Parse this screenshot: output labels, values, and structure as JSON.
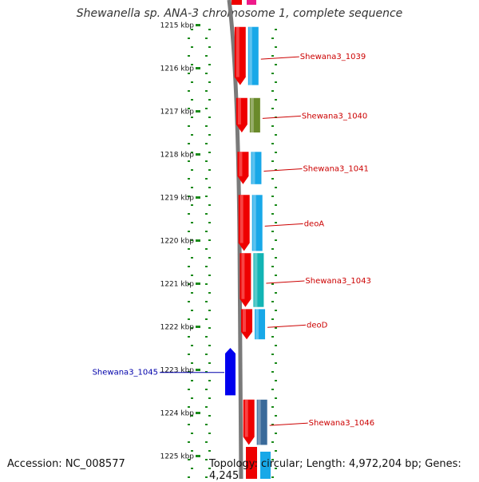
{
  "title": "Shewanella sp. ANA-3 chromosome 1, complete sequence",
  "footer": {
    "accession": "Accession: NC_008577",
    "summary": "Topology: circular; Length: 4,972,204 bp; Genes: 4,245"
  },
  "scale": {
    "ticks": [
      {
        "label": "1215 kbp",
        "kbp": 1215
      },
      {
        "label": "1216 kbp",
        "kbp": 1216
      },
      {
        "label": "1217 kbp",
        "kbp": 1217
      },
      {
        "label": "1218 kbp",
        "kbp": 1218
      },
      {
        "label": "1219 kbp",
        "kbp": 1219
      },
      {
        "label": "1220 kbp",
        "kbp": 1220
      },
      {
        "label": "1221 kbp",
        "kbp": 1221
      },
      {
        "label": "1222 kbp",
        "kbp": 1222
      },
      {
        "label": "1223 kbp",
        "kbp": 1223
      },
      {
        "label": "1224 kbp",
        "kbp": 1224
      },
      {
        "label": "1225 kbp",
        "kbp": 1225
      }
    ]
  },
  "genes": [
    {
      "name": "Shewana3_1039",
      "strand": "+",
      "start_kbp": 1215.05,
      "end_kbp": 1216.4,
      "function_color": "#18a8e8",
      "label_color": "#cc0000"
    },
    {
      "name": "Shewana3_1040",
      "strand": "+",
      "start_kbp": 1216.7,
      "end_kbp": 1217.5,
      "function_color": "#6a8a2a",
      "label_color": "#cc0000"
    },
    {
      "name": "Shewana3_1041",
      "strand": "+",
      "start_kbp": 1217.95,
      "end_kbp": 1218.7,
      "function_color": "#18a8e8",
      "label_color": "#cc0000"
    },
    {
      "name": "deoA",
      "strand": "+",
      "start_kbp": 1218.95,
      "end_kbp": 1220.25,
      "function_color": "#18a8e8",
      "label_color": "#cc0000"
    },
    {
      "name": "Shewana3_1043",
      "strand": "+",
      "start_kbp": 1220.3,
      "end_kbp": 1221.55,
      "function_color": "#12b4b4",
      "label_color": "#cc0000"
    },
    {
      "name": "deoD",
      "strand": "+",
      "start_kbp": 1221.6,
      "end_kbp": 1222.3,
      "function_color": "#18a8e8",
      "label_color": "#cc0000"
    },
    {
      "name": "Shewana3_1045",
      "strand": "-",
      "start_kbp": 1222.5,
      "end_kbp": 1223.6,
      "function_color": "#0000ee",
      "label_color": "#0000aa"
    },
    {
      "name": "Shewana3_1046",
      "strand": "+",
      "start_kbp": 1223.7,
      "end_kbp": 1224.75,
      "function_color": "#3a6a9a",
      "label_color": "#cc0000"
    }
  ]
}
